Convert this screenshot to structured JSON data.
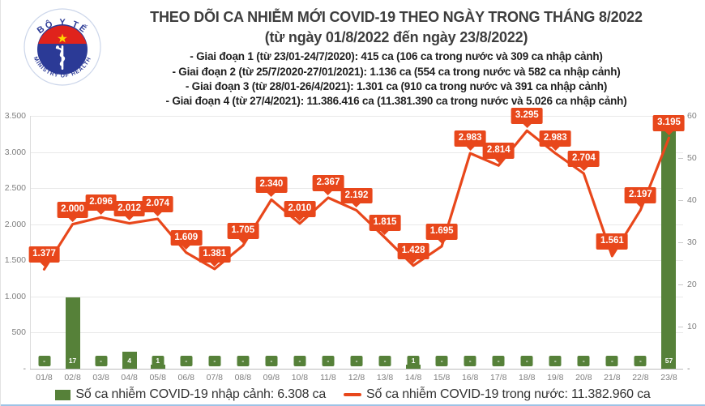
{
  "header": {
    "title": "THEO DÕI CA NHIỄM MỚI COVID-19 THEO NGÀY TRONG THÁNG 8/2022",
    "subtitle": "(từ ngày 01/8/2022 đến ngày 23/8/2022)",
    "bullets": [
      "- Giai đoạn 1 (từ 23/01-24/7/2020): 415 ca (106 ca trong nước và 309 ca nhập cảnh)",
      "- Giai đoạn 2 (từ 25/7/2020-27/01/2021): 1.136 ca (554 ca trong nước và 582 ca nhập cảnh)",
      "- Giai đoạn 3 (từ 28/01-26/4/2021): 1.301 ca (910 ca trong nước và 391 ca nhập cảnh)",
      "- Giai đoạn 4 (từ 27/4/2021): 11.386.416 ca (11.381.390 ca trong nước và 5.026 ca nhập cảnh)"
    ]
  },
  "logo": {
    "top_text": "BỘ Y TẾ",
    "bottom_text": "MINISTRY OF HEALTH",
    "blue": "#2b3a96",
    "red": "#e0231c",
    "star": "#ffd500"
  },
  "legend": {
    "imported_label": "Số ca nhiễm COVID-19 nhập cảnh: 6.308 ca",
    "domestic_label": "Số ca nhiễm COVID-19 trong nước: 11.382.960 ca"
  },
  "colors": {
    "line": "#e8471b",
    "bar": "#568139",
    "bottom_border": "#9dc3e6"
  },
  "chart_data": {
    "type": "combo",
    "categories": [
      "01/8",
      "02/8",
      "03/8",
      "04/8",
      "05/8",
      "06/8",
      "07/8",
      "08/8",
      "09/8",
      "10/8",
      "11/8",
      "12/8",
      "13/8",
      "14/8",
      "15/8",
      "16/8",
      "17/8",
      "18/8",
      "19/8",
      "20/8",
      "21/8",
      "22/8",
      "23/8"
    ],
    "series": [
      {
        "name": "Số ca nhiễm COVID-19 trong nước",
        "type": "line",
        "axis": "left",
        "color": "#e8471b",
        "values": [
          1377,
          2000,
          2096,
          2012,
          2074,
          1609,
          1381,
          1705,
          2340,
          2010,
          2367,
          2192,
          1815,
          1428,
          1695,
          2983,
          2814,
          3295,
          2983,
          2704,
          1561,
          2197,
          3195
        ],
        "labels": [
          "1.377",
          "2.000",
          "2.096",
          "2.012",
          "2.074",
          "1.609",
          "1.381",
          "1.705",
          "2.340",
          "2.010",
          "2.367",
          "2.192",
          "1.815",
          "1.428",
          "1.695",
          "2.983",
          "2.814",
          "3.295",
          "2.983",
          "2.704",
          "1.561",
          "2.197",
          "3.195"
        ],
        "total_label": "11.382.960"
      },
      {
        "name": "Số ca nhiễm COVID-19 nhập cảnh",
        "type": "bar",
        "axis": "right",
        "color": "#568139",
        "values": [
          0,
          17,
          0,
          4,
          1,
          0,
          0,
          0,
          0,
          0,
          0,
          0,
          0,
          1,
          0,
          0,
          0,
          0,
          0,
          0,
          0,
          0,
          57
        ],
        "labels": [
          "-",
          "17",
          "-",
          "4",
          "1",
          "-",
          "-",
          "-",
          "-",
          "-",
          "-",
          "-",
          "-",
          "1",
          "-",
          "-",
          "-",
          "-",
          "-",
          "-",
          "-",
          "-",
          "57"
        ],
        "total_label": "6.308"
      }
    ],
    "left_axis": {
      "min": 0,
      "max": 3500,
      "step": 500,
      "tick_labels": [
        "-",
        "500",
        "1.000",
        "1.500",
        "2.000",
        "2.500",
        "3.000",
        "3.500"
      ]
    },
    "right_axis": {
      "min": 0,
      "max": 60,
      "step": 10,
      "tick_labels": [
        "-",
        "10",
        "20",
        "30",
        "40",
        "50",
        "60"
      ]
    },
    "grid": "horizontal, left axis",
    "legend_position": "bottom"
  }
}
